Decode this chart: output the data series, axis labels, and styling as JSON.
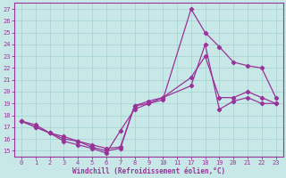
{
  "background_color": "#c8e8e8",
  "grid_color": "#aad4d4",
  "line_color": "#993399",
  "ylim": [
    14.5,
    27.5
  ],
  "yticks": [
    15,
    16,
    17,
    18,
    19,
    20,
    21,
    22,
    23,
    24,
    25,
    26,
    27
  ],
  "xlabel": "Windchill (Refroidissement éolien,°C)",
  "series": [
    {
      "xidx": [
        0,
        1,
        2,
        3,
        4,
        5,
        6,
        7,
        8,
        9,
        10,
        12,
        13,
        14,
        15,
        16,
        17,
        18
      ],
      "y": [
        17.5,
        17.0,
        16.5,
        15.8,
        15.5,
        15.2,
        14.8,
        16.7,
        18.5,
        19.0,
        19.3,
        27.0,
        25.0,
        23.8,
        22.5,
        22.2,
        22.0,
        19.5
      ]
    },
    {
      "xidx": [
        0,
        1,
        2,
        3,
        4,
        5,
        6,
        7,
        8,
        9,
        10,
        12,
        13,
        14,
        15,
        16,
        17,
        18
      ],
      "y": [
        17.5,
        17.0,
        16.5,
        16.0,
        15.8,
        15.3,
        15.0,
        15.2,
        18.8,
        19.2,
        19.5,
        21.2,
        23.0,
        19.5,
        19.5,
        20.0,
        19.5,
        19.0
      ]
    },
    {
      "xidx": [
        0,
        1,
        2,
        3,
        4,
        5,
        6,
        7,
        8,
        9,
        10,
        12,
        13,
        14,
        15,
        16,
        17,
        18
      ],
      "y": [
        17.5,
        17.2,
        16.5,
        16.2,
        15.8,
        15.5,
        15.2,
        15.3,
        18.8,
        19.0,
        19.5,
        20.5,
        24.0,
        18.5,
        19.2,
        19.5,
        19.0,
        19.0
      ]
    }
  ],
  "tick_positions": [
    0,
    1,
    2,
    3,
    4,
    5,
    6,
    7,
    8,
    9,
    10,
    11,
    17,
    18,
    19,
    20,
    21,
    22,
    23
  ],
  "tick_indices": [
    0,
    1,
    2,
    3,
    4,
    5,
    6,
    7,
    8,
    9,
    10,
    11,
    12,
    13,
    14,
    15,
    16,
    17,
    18
  ]
}
